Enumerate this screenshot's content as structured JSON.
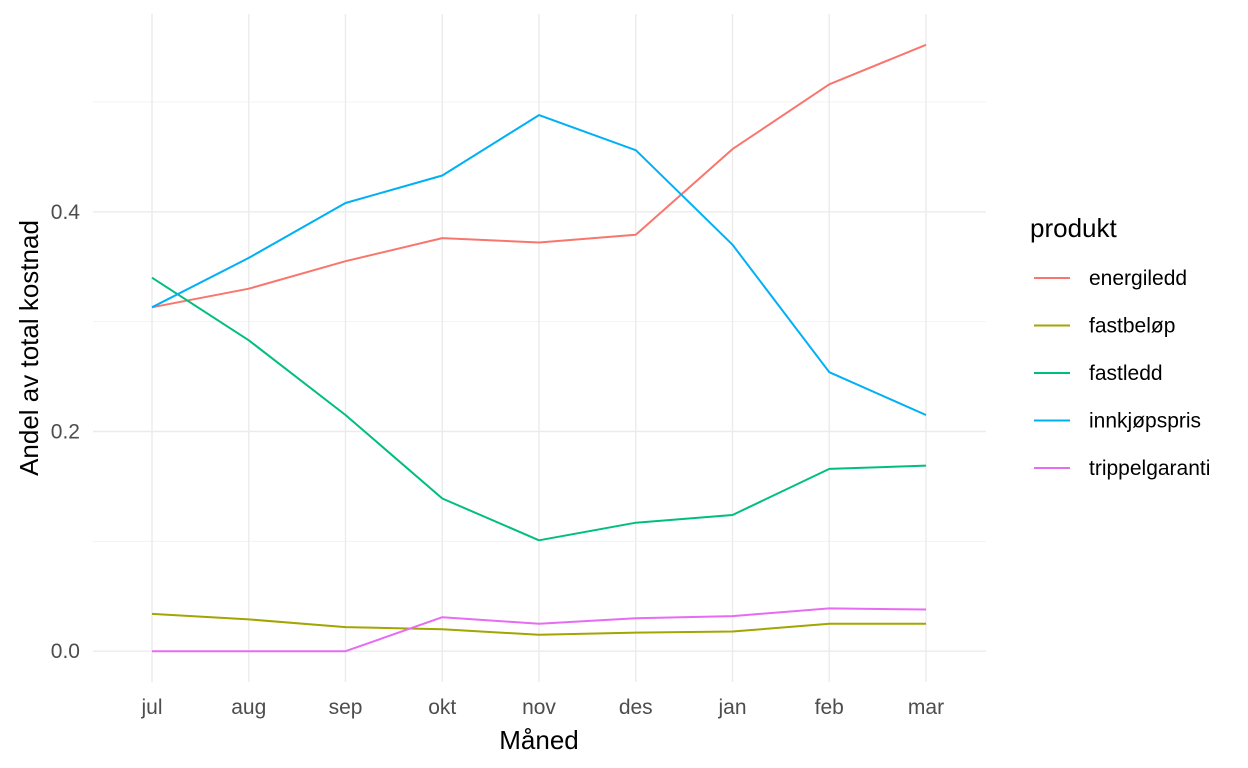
{
  "chart_data": {
    "type": "line",
    "xlabel": "Måned",
    "ylabel": "Andel av total kostnad",
    "categories": [
      "jul",
      "aug",
      "sep",
      "okt",
      "nov",
      "des",
      "jan",
      "feb",
      "mar"
    ],
    "yticks": [
      0.0,
      0.2,
      0.4
    ],
    "ytick_labels": [
      "0.0",
      "0.2",
      "0.4"
    ],
    "ylim": [
      -0.028,
      0.58
    ],
    "grid": true,
    "legend": {
      "title": "produkt",
      "position": "right"
    },
    "series": [
      {
        "name": "energiledd",
        "color": "#F8766D",
        "values": [
          0.313,
          0.33,
          0.355,
          0.376,
          0.372,
          0.379,
          0.457,
          0.516,
          0.552
        ]
      },
      {
        "name": "fastbeløp",
        "color": "#A3A500",
        "values": [
          0.034,
          0.029,
          0.022,
          0.02,
          0.015,
          0.017,
          0.018,
          0.025,
          0.025
        ]
      },
      {
        "name": "fastledd",
        "color": "#00BF7D",
        "values": [
          0.34,
          0.283,
          0.215,
          0.139,
          0.101,
          0.117,
          0.124,
          0.166,
          0.169
        ]
      },
      {
        "name": "innkjøpspris",
        "color": "#00B0F6",
        "values": [
          0.313,
          0.358,
          0.408,
          0.433,
          0.488,
          0.456,
          0.37,
          0.254,
          0.215
        ]
      },
      {
        "name": "trippelgaranti",
        "color": "#E76BF3",
        "values": [
          0.0,
          0.0,
          0.0,
          0.031,
          0.025,
          0.03,
          0.032,
          0.039,
          0.038
        ]
      }
    ]
  }
}
